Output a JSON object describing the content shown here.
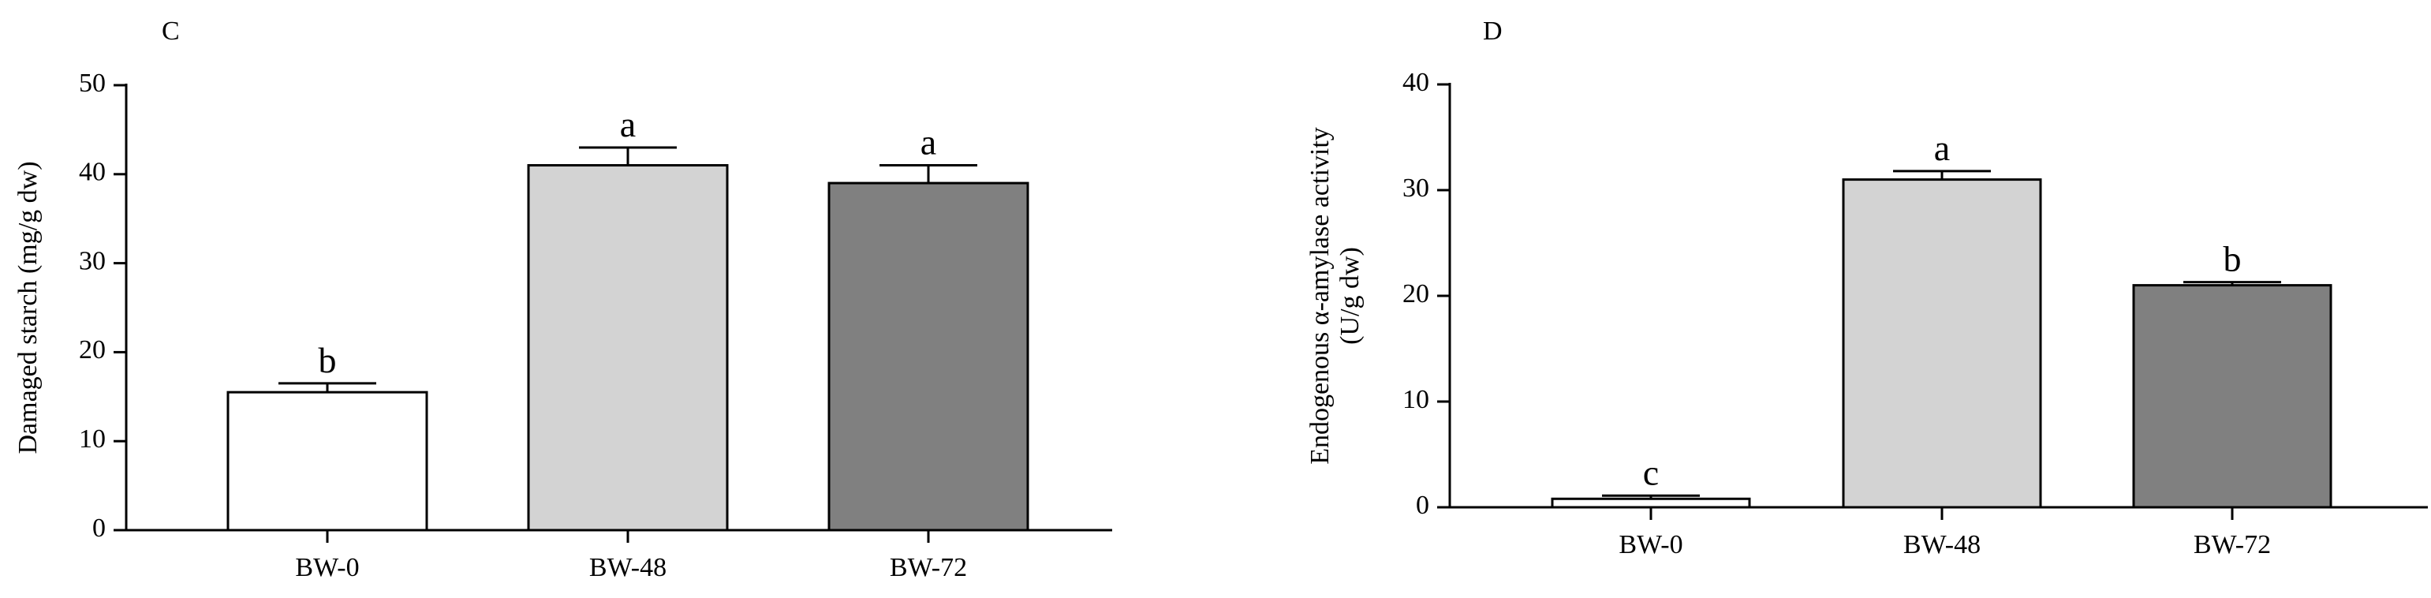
{
  "chart_data": [
    {
      "panel": "C",
      "type": "bar",
      "categories": [
        "BW-0",
        "BW-48",
        "BW-72"
      ],
      "values": [
        15.5,
        41,
        39
      ],
      "errors": [
        1,
        2,
        2
      ],
      "significance": [
        "b",
        "a",
        "a"
      ],
      "colors": [
        "#ffffff",
        "#d3d3d3",
        "#808080"
      ],
      "ylabel": "Damaged starch (mg/g dw)",
      "ylabel_lines": [
        "Damaged starch (mg/g dw)"
      ],
      "xlabel": "",
      "ylim": [
        0,
        50
      ],
      "yticks": [
        0,
        10,
        20,
        30,
        40,
        50
      ],
      "grid": false
    },
    {
      "panel": "D",
      "type": "bar",
      "categories": [
        "BW-0",
        "BW-48",
        "BW-72"
      ],
      "values": [
        0.8,
        31,
        21
      ],
      "errors": [
        0.3,
        0.8,
        0.3
      ],
      "significance": [
        "c",
        "a",
        "b"
      ],
      "colors": [
        "#ffffff",
        "#d3d3d3",
        "#808080"
      ],
      "ylabel": "Endogenous α-amylase activity (U/g dw)",
      "ylabel_lines": [
        "Endogenous α-amylase activity",
        "(U/g dw)"
      ],
      "xlabel": "",
      "ylim": [
        0,
        40
      ],
      "yticks": [
        0,
        10,
        20,
        30,
        40
      ],
      "grid": false
    }
  ]
}
